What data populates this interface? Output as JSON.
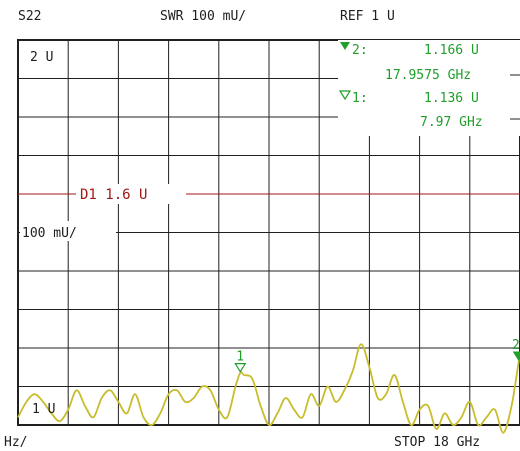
{
  "header": {
    "trace": "S22",
    "format": "SWR 100 mU/",
    "reference": "REF 1 U"
  },
  "footer": {
    "left": "Hz/",
    "right": "STOP 18 GHz"
  },
  "markers": [
    {
      "index_label": "2:",
      "value": "1.166  U",
      "freq": "17.9575 GHz"
    },
    {
      "index_label": "1:",
      "value": "1.136  U",
      "freq": "7.97 GHz"
    }
  ],
  "limit_line": {
    "label": "D1 1.6 U",
    "value": 1.6,
    "color": "#a01818"
  },
  "scale_labels": {
    "top": "2 U",
    "mid": "100 mU/",
    "bottom": "1 U"
  },
  "marker_tags": {
    "m1": "1",
    "m2": "2"
  },
  "colors": {
    "trace": "#c8bd2c",
    "marker": "#1f9e2a",
    "limit": "#a01818",
    "grid": "#202020"
  },
  "icons": {
    "active_marker": "filled-triangle-down",
    "other_marker": "outline-triangle-down"
  },
  "chart_data": {
    "type": "line",
    "x_unit": "GHz",
    "y_unit": "U",
    "xlim": [
      0,
      18
    ],
    "ylim": [
      1,
      2
    ],
    "grid": true,
    "x": [
      0,
      0.3,
      0.6,
      0.9,
      1.2,
      1.5,
      1.8,
      2.1,
      2.4,
      2.7,
      3.0,
      3.3,
      3.6,
      3.9,
      4.2,
      4.5,
      4.8,
      5.1,
      5.4,
      5.7,
      6.0,
      6.3,
      6.6,
      6.9,
      7.2,
      7.5,
      7.8,
      7.97,
      8.1,
      8.4,
      8.7,
      9.0,
      9.3,
      9.6,
      9.9,
      10.2,
      10.5,
      10.8,
      11.1,
      11.4,
      11.7,
      12.0,
      12.3,
      12.6,
      12.9,
      13.2,
      13.5,
      13.8,
      14.1,
      14.4,
      14.7,
      15.0,
      15.3,
      15.6,
      15.9,
      16.2,
      16.5,
      16.8,
      17.1,
      17.4,
      17.7,
      17.9575,
      18.0
    ],
    "series": [
      {
        "values": [
          1.02,
          1.06,
          1.08,
          1.06,
          1.03,
          1.01,
          1.04,
          1.09,
          1.05,
          1.02,
          1.07,
          1.09,
          1.06,
          1.03,
          1.08,
          1.02,
          1.0,
          1.03,
          1.08,
          1.09,
          1.06,
          1.07,
          1.1,
          1.09,
          1.04,
          1.02,
          1.1,
          1.136,
          1.13,
          1.12,
          1.05,
          1.0,
          1.03,
          1.07,
          1.04,
          1.02,
          1.08,
          1.05,
          1.1,
          1.06,
          1.09,
          1.14,
          1.21,
          1.15,
          1.07,
          1.08,
          1.13,
          1.06,
          1.0,
          1.04,
          1.05,
          0.99,
          1.03,
          1.0,
          1.02,
          1.06,
          1.0,
          1.02,
          1.04,
          0.98,
          1.05,
          1.166,
          1.17
        ]
      }
    ],
    "limit_value": 1.6,
    "marker_x": [
      7.97,
      17.9575
    ],
    "marker_y": [
      1.136,
      1.166
    ]
  }
}
